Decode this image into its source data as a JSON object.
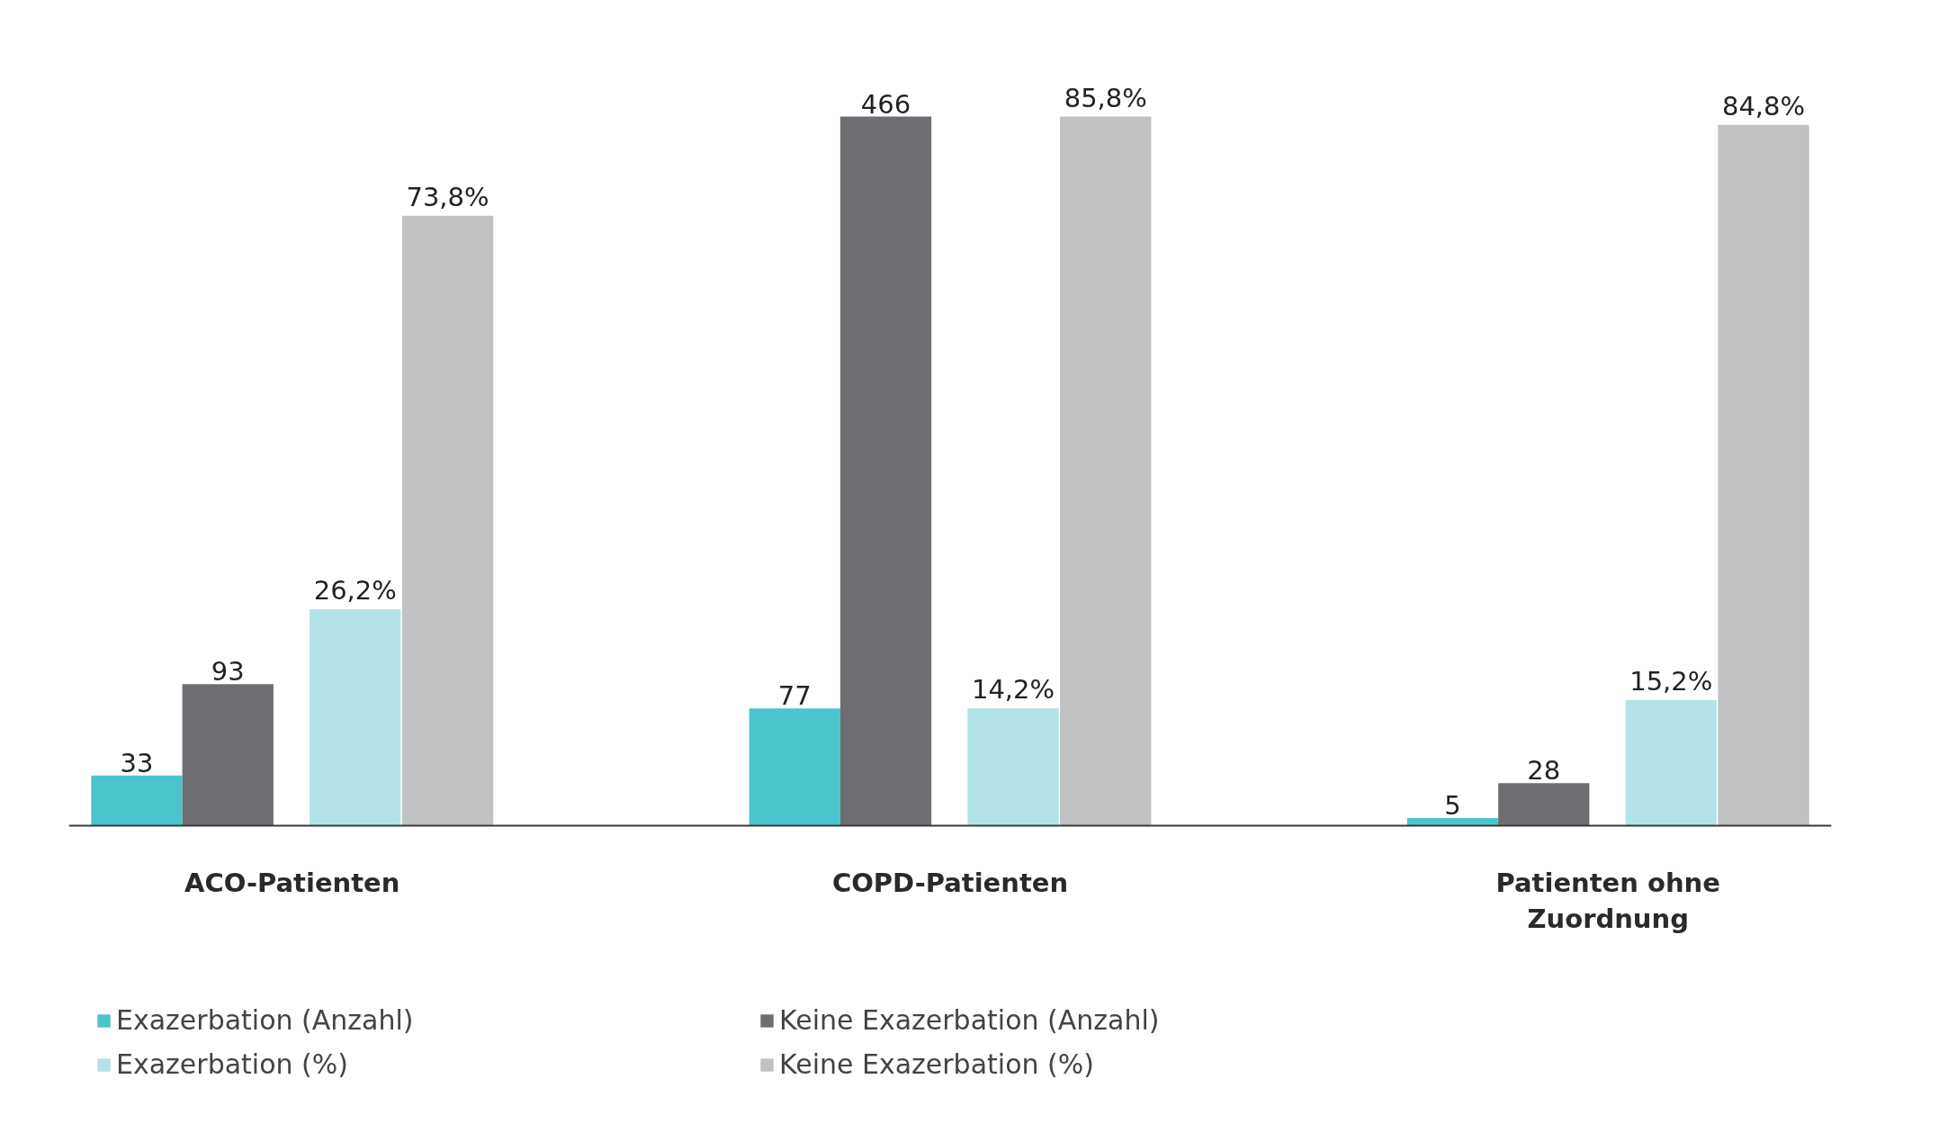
{
  "chart_data": {
    "type": "bar",
    "categories": [
      "ACO-Patienten",
      "COPD-Patienten",
      "Patienten ohne Zuordnung"
    ],
    "series": [
      {
        "name": "Exazerbation (Anzahl)",
        "color": "#4bc4cb",
        "values": [
          33,
          77,
          5
        ],
        "value_labels": [
          "33",
          "77",
          "5"
        ]
      },
      {
        "name": "Keine Exazerbation (Anzahl)",
        "color": "#6d6e71",
        "values": [
          93,
          466,
          28
        ],
        "value_labels": [
          "93",
          "466",
          "28"
        ]
      },
      {
        "name": "Exazerbation (%)",
        "color": "#b3e3e7",
        "values": [
          26.2,
          14.2,
          15.2
        ],
        "value_labels": [
          "26,2%",
          "14,2%",
          "15,2%"
        ],
        "axis": "y2"
      },
      {
        "name": "Keine Exazerbation (%)",
        "color": "#c0c1c3",
        "values": [
          73.8,
          85.8,
          84.8
        ],
        "value_labels": [
          "73,8%",
          "85,8%",
          "84,8%"
        ],
        "axis": "y2"
      }
    ],
    "tick_labels": "x",
    "legend": "bottom",
    "grid": false
  }
}
